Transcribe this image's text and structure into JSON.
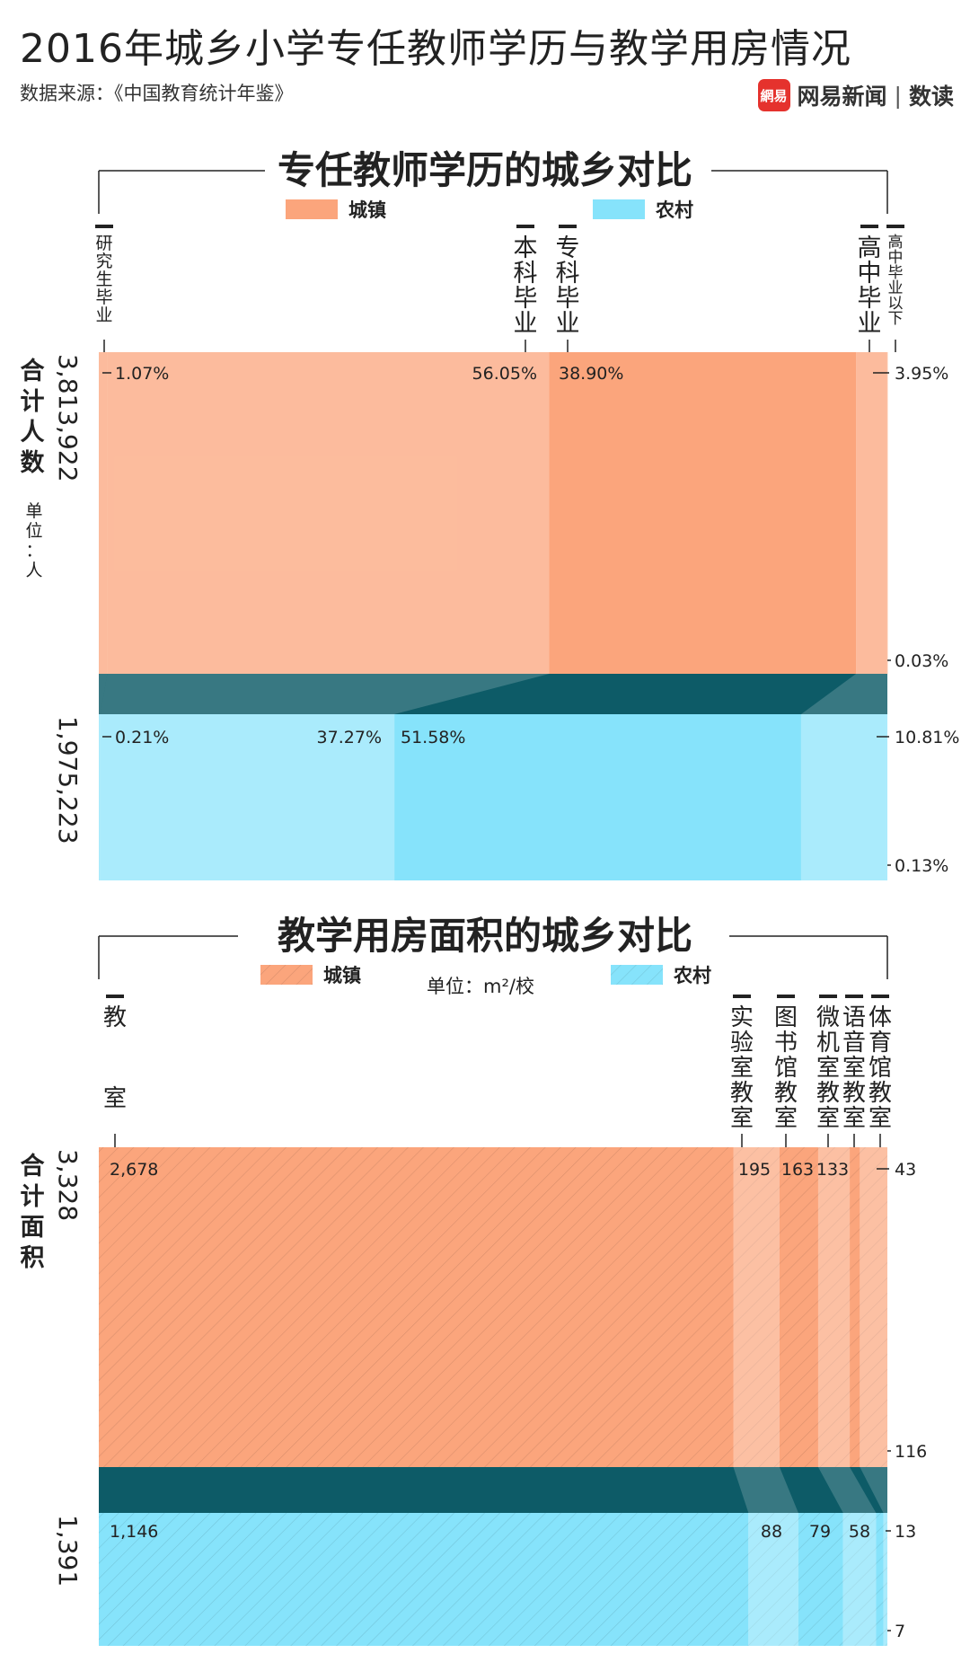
{
  "header": {
    "title": "2016年城乡小学专任教师学历与教学用房情况",
    "source": "数据来源：《中国教育统计年鉴》",
    "brand_logo": "網易",
    "brand_name": "网易新闻",
    "brand_sep": "|",
    "brand_sub": "数读"
  },
  "colors": {
    "urban": "#fba57c",
    "urban_light": "#fcc0a2",
    "rural": "#86e3fb",
    "rural_light": "#aee9fa",
    "band": "#0d5b67",
    "text": "#222222"
  },
  "chart_data": [
    {
      "type": "bar",
      "title": "专任教师学历的城乡对比",
      "legend": [
        "城镇",
        "农村"
      ],
      "total_label": "合计人数",
      "unit_label": "（单位：人）",
      "categories": [
        "研究生毕业",
        "本科毕业",
        "专科毕业",
        "高中毕业",
        "高中毕业以下"
      ],
      "totals": {
        "urban": "3,813,922",
        "rural": "1,975,223"
      },
      "series": [
        {
          "name": "城镇",
          "values": [
            1.07,
            56.05,
            38.9,
            3.95,
            0.03
          ],
          "labels": [
            "1.07%",
            "56.05%",
            "38.90%",
            "3.95%",
            "0.03%"
          ]
        },
        {
          "name": "农村",
          "values": [
            0.21,
            37.27,
            51.58,
            10.81,
            0.13
          ],
          "labels": [
            "0.21%",
            "37.27%",
            "51.58%",
            "10.81%",
            "0.13%"
          ]
        }
      ]
    },
    {
      "type": "bar",
      "title": "教学用房面积的城乡对比",
      "legend": [
        "城镇",
        "农村"
      ],
      "unit_label": "单位：m²/校",
      "total_label": "合计面积",
      "categories": [
        "教室",
        "实验室教室",
        "图书馆教室",
        "微机室教室",
        "语音室教室",
        "体育馆教室"
      ],
      "totals": {
        "urban": "3,328",
        "rural": "1,391"
      },
      "series": [
        {
          "name": "城镇",
          "values": [
            2678,
            195,
            163,
            133,
            43,
            116
          ],
          "labels": [
            "2,678",
            "195",
            "163",
            "133",
            "43",
            "116"
          ]
        },
        {
          "name": "农村",
          "values": [
            1146,
            88,
            79,
            58,
            13,
            7
          ],
          "labels": [
            "1,146",
            "88",
            "79",
            "58",
            "13",
            "7"
          ]
        }
      ]
    }
  ]
}
